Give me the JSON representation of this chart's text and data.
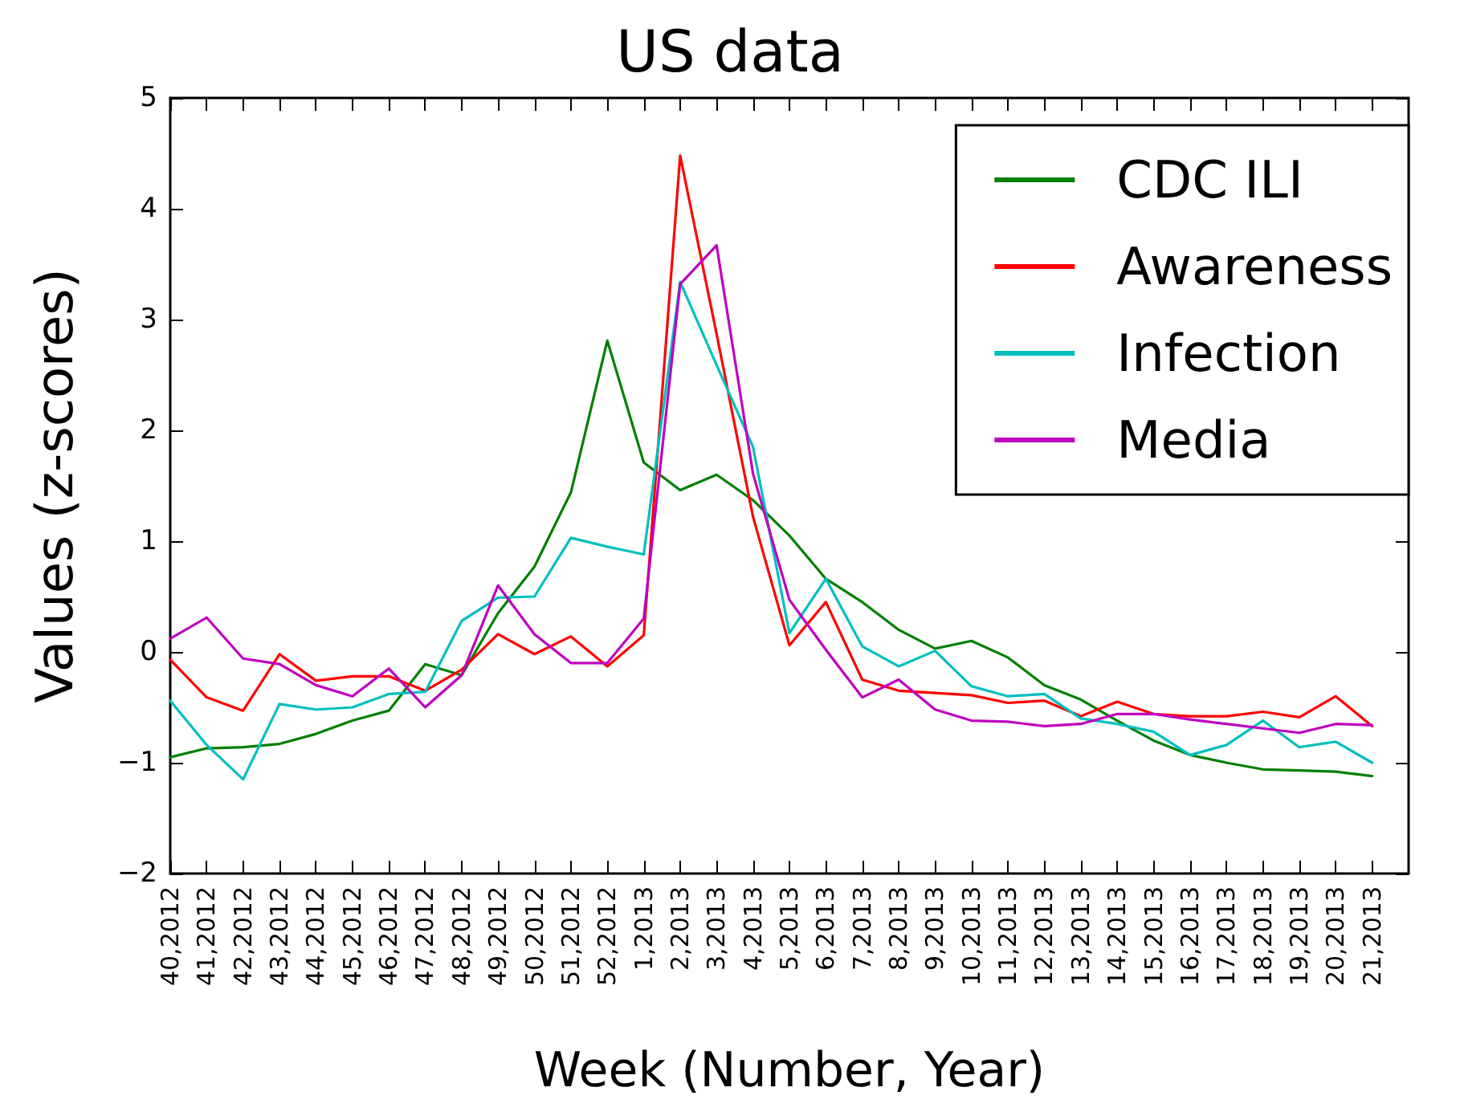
{
  "chart_data": {
    "type": "line",
    "title": "US data",
    "xlabel": "Week (Number, Year)",
    "ylabel": "Values (z-scores)",
    "categories": [
      "40,2012",
      "41,2012",
      "42,2012",
      "43,2012",
      "44,2012",
      "45,2012",
      "46,2012",
      "47,2012",
      "48,2012",
      "49,2012",
      "50,2012",
      "51,2012",
      "52,2012",
      "1,2013",
      "2,2013",
      "3,2013",
      "4,2013",
      "5,2013",
      "6,2013",
      "7,2013",
      "8,2013",
      "9,2013",
      "10,2013",
      "11,2013",
      "12,2013",
      "13,2013",
      "14,2013",
      "15,2013",
      "16,2013",
      "17,2013",
      "18,2013",
      "19,2013",
      "20,2013",
      "21,2013"
    ],
    "series": [
      {
        "name": "CDC ILI",
        "color": "#008000",
        "values": [
          -0.95,
          -0.87,
          -0.86,
          -0.83,
          -0.74,
          -0.62,
          -0.53,
          -0.11,
          -0.21,
          0.35,
          0.77,
          1.44,
          2.81,
          1.71,
          1.46,
          1.6,
          1.37,
          1.05,
          0.66,
          0.45,
          0.2,
          0.03,
          0.1,
          -0.05,
          -0.3,
          -0.43,
          -0.62,
          -0.8,
          -0.93,
          -1.0,
          -1.06,
          -1.07,
          -1.08,
          -1.12
        ]
      },
      {
        "name": "Awareness",
        "color": "#ff0000",
        "values": [
          -0.07,
          -0.41,
          -0.53,
          -0.02,
          -0.26,
          -0.22,
          -0.22,
          -0.35,
          -0.16,
          0.16,
          -0.02,
          0.14,
          -0.13,
          0.15,
          4.48,
          2.87,
          1.22,
          0.06,
          0.45,
          -0.25,
          -0.35,
          -0.37,
          -0.39,
          -0.46,
          -0.44,
          -0.58,
          -0.45,
          -0.56,
          -0.58,
          -0.58,
          -0.54,
          -0.59,
          -0.4,
          -0.67
        ]
      },
      {
        "name": "Infection",
        "color": "#00bfbf",
        "values": [
          -0.44,
          -0.84,
          -1.15,
          -0.47,
          -0.52,
          -0.5,
          -0.38,
          -0.36,
          0.28,
          0.49,
          0.5,
          1.03,
          0.95,
          0.88,
          3.34,
          2.59,
          1.85,
          0.17,
          0.66,
          0.05,
          -0.13,
          0.01,
          -0.31,
          -0.4,
          -0.38,
          -0.6,
          -0.65,
          -0.72,
          -0.93,
          -0.84,
          -0.62,
          -0.86,
          -0.81,
          -1.0
        ]
      },
      {
        "name": "Media",
        "color": "#bf00bf",
        "values": [
          0.12,
          0.31,
          -0.06,
          -0.11,
          -0.3,
          -0.4,
          -0.15,
          -0.5,
          -0.21,
          0.6,
          0.16,
          -0.1,
          -0.1,
          0.3,
          3.32,
          3.67,
          1.61,
          0.47,
          0.02,
          -0.41,
          -0.25,
          -0.52,
          -0.62,
          -0.63,
          -0.67,
          -0.65,
          -0.56,
          -0.56,
          -0.61,
          -0.65,
          -0.69,
          -0.73,
          -0.65,
          -0.66
        ]
      }
    ],
    "ylim": [
      -2,
      5
    ],
    "yticks": [
      -2,
      -1,
      0,
      1,
      2,
      3,
      4,
      5
    ],
    "grid": false,
    "legend": "top right",
    "marker": "none",
    "line_style": "solid"
  }
}
